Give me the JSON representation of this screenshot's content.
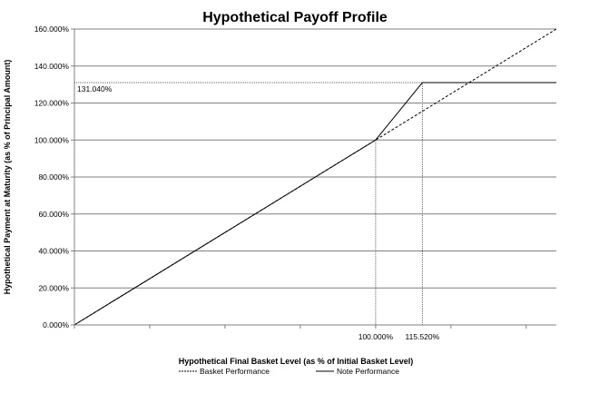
{
  "chart_data": {
    "type": "line",
    "title": "Hypothetical Payoff Profile",
    "xlabel": "Hypothetical Final Basket Level (as % of Initial Basket Level)",
    "ylabel": "Hypothetical Payment at Maturity (as % of Principal Amount)",
    "xlim": [
      0,
      160
    ],
    "ylim": [
      0,
      160
    ],
    "y_ticks": [
      0,
      20,
      40,
      60,
      80,
      100,
      120,
      140,
      160
    ],
    "y_tick_labels": [
      "0.000%",
      "20.000%",
      "40.000%",
      "60.000%",
      "80.000%",
      "100.000%",
      "120.000%",
      "140.000%",
      "160.000%"
    ],
    "x_ticks": [
      0,
      25,
      50,
      75,
      100,
      125,
      150
    ],
    "x_labels": [
      {
        "x": 100,
        "label": "100.000%"
      },
      {
        "x": 115.52,
        "label": "115.520%"
      }
    ],
    "annotation": {
      "y": 131.04,
      "label": "131.040%"
    },
    "grid": "horizontal",
    "legend_placement": "bottom",
    "series": [
      {
        "name": "Basket Performance",
        "style": "dashed",
        "x": [
          0,
          160
        ],
        "y": [
          0,
          160
        ]
      },
      {
        "name": "Note Performance",
        "style": "solid",
        "x": [
          0,
          100,
          115.52,
          160
        ],
        "y": [
          0,
          100,
          131.04,
          131.04
        ]
      }
    ],
    "colors": {
      "line": "#000000",
      "grid": "#808080"
    }
  }
}
